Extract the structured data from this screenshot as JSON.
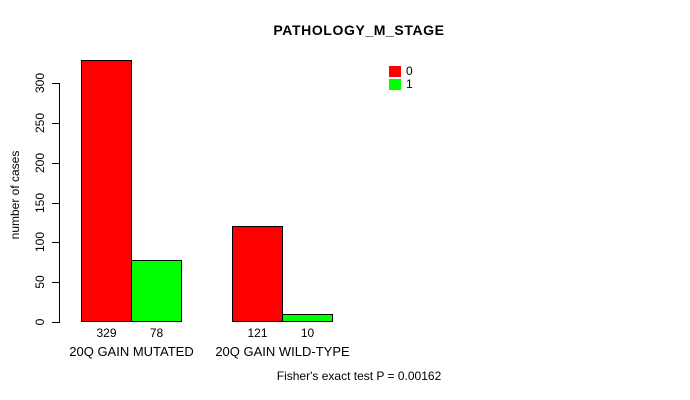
{
  "chart_data": {
    "type": "bar",
    "title": "PATHOLOGY_M_STAGE",
    "xlabel": "",
    "ylabel": "number of cases",
    "categories": [
      "20Q GAIN MUTATED",
      "20Q GAIN WILD-TYPE"
    ],
    "series": [
      {
        "name": "0",
        "color": "#ff0000",
        "values": [
          329,
          121
        ]
      },
      {
        "name": "1",
        "color": "#00ff00",
        "values": [
          78,
          10
        ]
      }
    ],
    "yticks": [
      0,
      50,
      100,
      150,
      200,
      250,
      300
    ],
    "ylim": [
      0,
      345
    ],
    "grid": false,
    "legend_position": "top-right",
    "bar_value_labels": true,
    "annotation": "Fisher's exact test P = 0.00162"
  }
}
